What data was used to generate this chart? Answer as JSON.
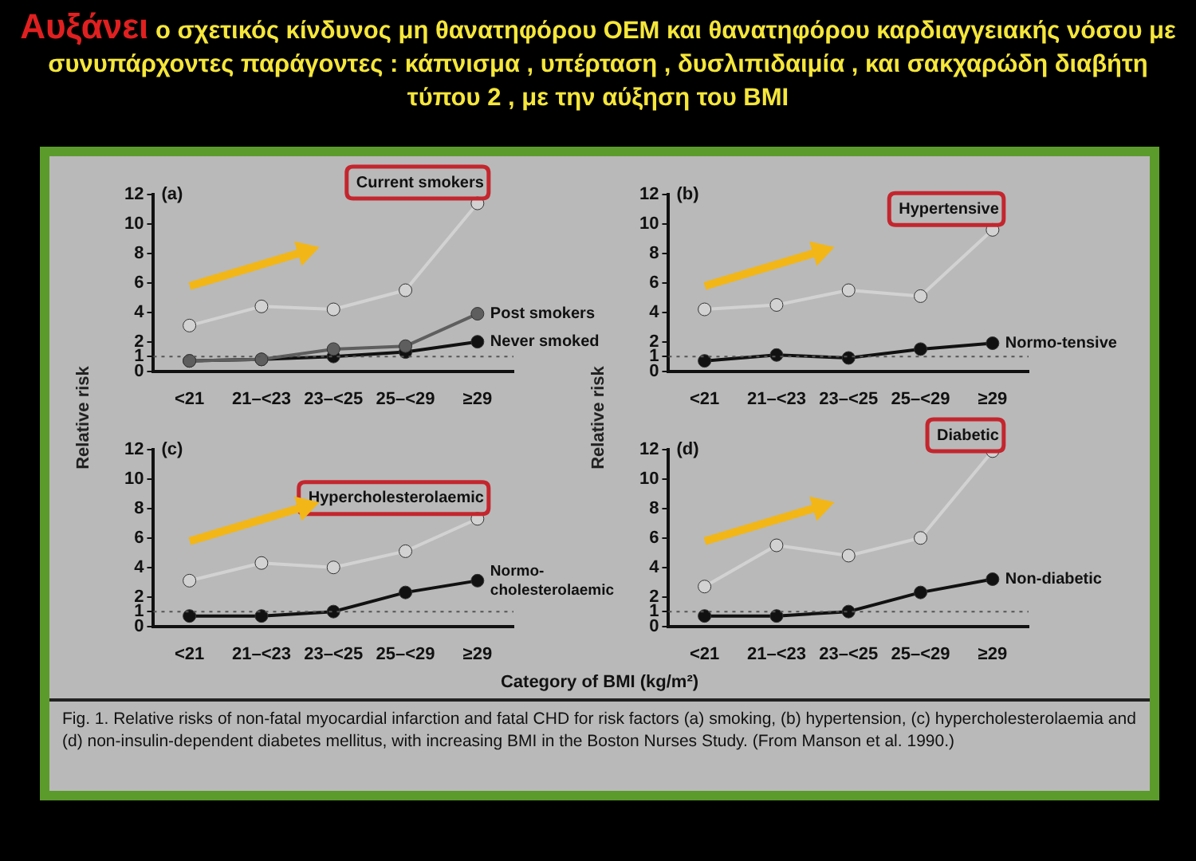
{
  "chart_data": [
    {
      "type": "line",
      "title": "Αυξάνει ο σχετικός κίνδυνος μη θανατηφόρου ΟΕΜ και θανατηφόρου καρδιαγγειακής νόσου με συνυπάρχοντες παράγοντες : κάπνισμα , υπέρταση , δυσλιπιδαιμία , και σακχαρώδη διαβήτη τύπου 2 , με την αύξηση του BMI",
      "ylabel": "Relative risk",
      "annotations": [
        "(a)"
      ],
      "categories": [
        "<21",
        "21–<23",
        "23–<25",
        "25–<29",
        "≥29"
      ],
      "marker": "circle",
      "ylim": [
        0,
        12
      ],
      "yticks": [
        0,
        1,
        2,
        4,
        6,
        8,
        10,
        12
      ],
      "grid": false,
      "legend": false,
      "ref_lines": [
        {
          "axis": "y",
          "value": 1,
          "color": "#555555",
          "line_style": "dotted"
        }
      ],
      "series": [
        {
          "name": "Current smokers",
          "color": "#d2d2d2",
          "values": [
            3.1,
            4.4,
            4.2,
            5.5,
            11.4
          ]
        },
        {
          "name": "Post smokers",
          "color": "#5e5e5e",
          "values": [
            0.7,
            0.8,
            1.5,
            1.7,
            3.9
          ]
        },
        {
          "name": "Never smoked",
          "color": "#111111",
          "values": [
            0.7,
            0.8,
            1.0,
            1.3,
            2.0
          ]
        }
      ]
    },
    {
      "type": "line",
      "ylabel": "Relative risk",
      "annotations": [
        "(b)"
      ],
      "categories": [
        "<21",
        "21–<23",
        "23–<25",
        "25–<29",
        "≥29"
      ],
      "marker": "circle",
      "ylim": [
        0,
        12
      ],
      "yticks": [
        0,
        1,
        2,
        4,
        6,
        8,
        10,
        12
      ],
      "grid": false,
      "legend": false,
      "ref_lines": [
        {
          "axis": "y",
          "value": 1,
          "color": "#555555",
          "line_style": "dotted"
        }
      ],
      "series": [
        {
          "name": "Hypertensive",
          "color": "#d2d2d2",
          "values": [
            4.2,
            4.5,
            5.5,
            5.1,
            9.6
          ]
        },
        {
          "name": "Normo-tensive",
          "color": "#111111",
          "values": [
            0.7,
            1.1,
            0.9,
            1.5,
            1.9
          ]
        }
      ]
    },
    {
      "type": "line",
      "xlabel": "Category of BMI (kg/m²)",
      "annotations": [
        "(c)",
        "Fig. 1. Relative risks of non-fatal myocardial infarction and fatal CHD for risk factors (a) smoking, (b) hypertension, (c) hypercholesterolaemia and (d) non-insulin-dependent diabetes mellitus, with increasing BMI in the Boston Nurses Study. (From Manson et al. 1990.)"
      ],
      "categories": [
        "<21",
        "21–<23",
        "23–<25",
        "25–<29",
        "≥29"
      ],
      "marker": "circle",
      "ylim": [
        0,
        12
      ],
      "yticks": [
        0,
        1,
        2,
        4,
        6,
        8,
        10,
        12
      ],
      "grid": false,
      "legend": false,
      "ref_lines": [
        {
          "axis": "y",
          "value": 1,
          "color": "#555555",
          "line_style": "dotted"
        }
      ],
      "series": [
        {
          "name": "Hypercholesterolaemic",
          "color": "#d2d2d2",
          "values": [
            3.1,
            4.3,
            4.0,
            5.1,
            7.3
          ]
        },
        {
          "name": "Normo-cholesterolaemic",
          "color": "#111111",
          "values": [
            0.7,
            0.7,
            1.0,
            2.3,
            3.1
          ]
        }
      ]
    },
    {
      "type": "line",
      "annotations": [
        "(d)"
      ],
      "categories": [
        "<21",
        "21–<23",
        "23–<25",
        "25–<29",
        "≥29"
      ],
      "marker": "circle",
      "ylim": [
        0,
        12
      ],
      "yticks": [
        0,
        1,
        2,
        4,
        6,
        8,
        10,
        12
      ],
      "grid": false,
      "legend": false,
      "ref_lines": [
        {
          "axis": "y",
          "value": 1,
          "color": "#555555",
          "line_style": "dotted"
        }
      ],
      "series": [
        {
          "name": "Diabetic",
          "color": "#d2d2d2",
          "values": [
            2.7,
            5.5,
            4.8,
            6.0,
            11.9
          ]
        },
        {
          "name": "Non-diabetic",
          "color": "#111111",
          "values": [
            0.7,
            0.7,
            1.0,
            2.3,
            3.2
          ]
        }
      ]
    }
  ]
}
